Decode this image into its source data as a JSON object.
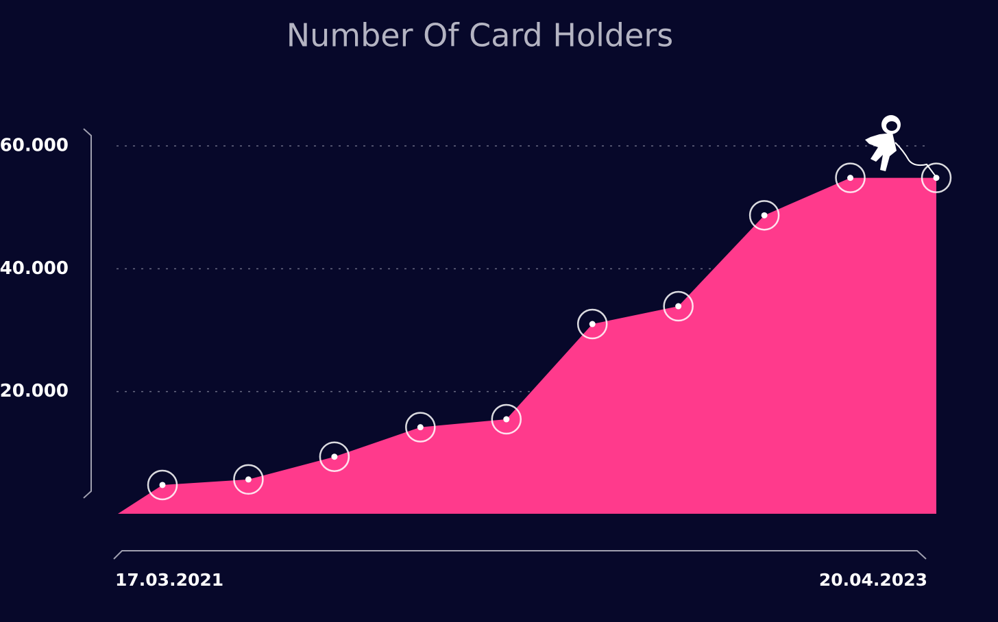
{
  "chart_data": {
    "type": "area",
    "title": "Number Of Card Holders",
    "values": [
      4800,
      5700,
      9400,
      14200,
      15500,
      31000,
      33900,
      48700,
      54800,
      54800
    ],
    "x_range_labels": [
      "17.03.2021",
      "20.04.2023"
    ],
    "color": "#ff3a8c",
    "ylim": [
      0,
      60000
    ],
    "yticks": [
      {
        "value": 20000,
        "label": "20.000"
      },
      {
        "value": 40000,
        "label": "40.000"
      },
      {
        "value": 60000,
        "label": "60.000"
      }
    ],
    "grid": true,
    "markers": true
  }
}
